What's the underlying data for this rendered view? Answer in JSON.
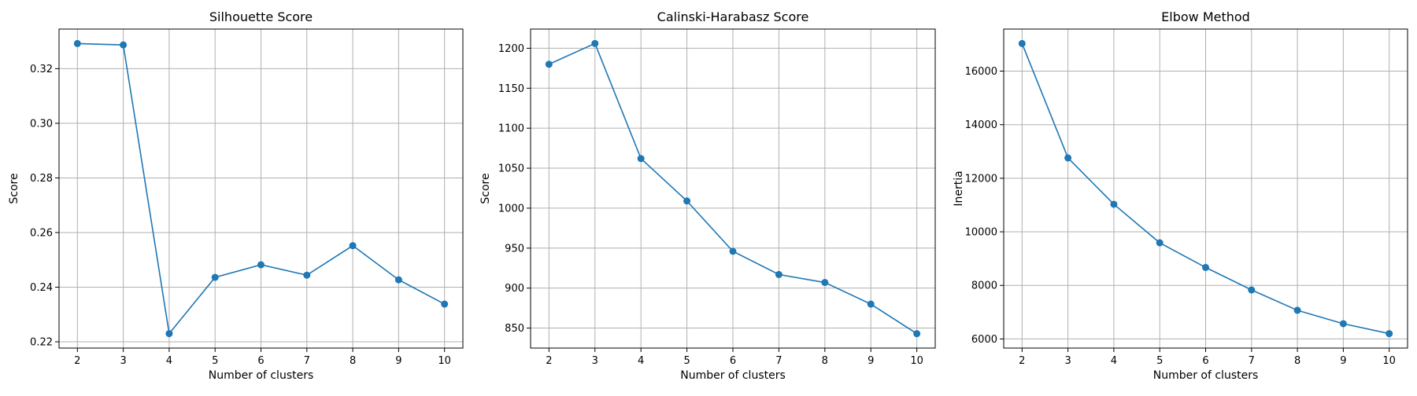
{
  "colors": {
    "series": "#1f77b4",
    "grid": "#b0b0b0",
    "axes": "#000000"
  },
  "chart_data": [
    {
      "type": "line",
      "title": "Silhouette Score",
      "xlabel": "Number of clusters",
      "ylabel": "Score",
      "x": [
        2,
        3,
        4,
        5,
        6,
        7,
        8,
        9,
        10
      ],
      "y": [
        0.3292,
        0.3287,
        0.223,
        0.2436,
        0.2482,
        0.2444,
        0.2552,
        0.2427,
        0.2338
      ],
      "xticks": [
        "2",
        "3",
        "4",
        "5",
        "6",
        "7",
        "8",
        "9",
        "10"
      ],
      "yticks": [
        {
          "value": 0.22,
          "label": "0.22"
        },
        {
          "value": 0.24,
          "label": "0.24"
        },
        {
          "value": 0.26,
          "label": "0.26"
        },
        {
          "value": 0.28,
          "label": "0.28"
        },
        {
          "value": 0.3,
          "label": "0.30"
        },
        {
          "value": 0.32,
          "label": "0.32"
        }
      ],
      "xlim": [
        1.6,
        10.4
      ],
      "ylim": [
        0.2177,
        0.3345
      ],
      "grid": true,
      "marker": "circle"
    },
    {
      "type": "line",
      "title": "Calinski-Harabasz Score",
      "xlabel": "Number of clusters",
      "ylabel": "Score",
      "x": [
        2,
        3,
        4,
        5,
        6,
        7,
        8,
        9,
        10
      ],
      "y": [
        1180,
        1206,
        1062,
        1009,
        946,
        917,
        907,
        880,
        843
      ],
      "xticks": [
        "2",
        "3",
        "4",
        "5",
        "6",
        "7",
        "8",
        "9",
        "10"
      ],
      "yticks": [
        {
          "value": 850,
          "label": "850"
        },
        {
          "value": 900,
          "label": "900"
        },
        {
          "value": 950,
          "label": "950"
        },
        {
          "value": 1000,
          "label": "1000"
        },
        {
          "value": 1050,
          "label": "1050"
        },
        {
          "value": 1100,
          "label": "1100"
        },
        {
          "value": 1150,
          "label": "1150"
        },
        {
          "value": 1200,
          "label": "1200"
        }
      ],
      "xlim": [
        1.6,
        10.4
      ],
      "ylim": [
        825,
        1224
      ],
      "grid": true,
      "marker": "circle"
    },
    {
      "type": "line",
      "title": "Elbow Method",
      "xlabel": "Number of clusters",
      "ylabel": "Inertia",
      "x": [
        2,
        3,
        4,
        5,
        6,
        7,
        8,
        9,
        10
      ],
      "y": [
        17030,
        12760,
        11030,
        9590,
        8670,
        7830,
        7070,
        6570,
        6200
      ],
      "xticks": [
        "2",
        "3",
        "4",
        "5",
        "6",
        "7",
        "8",
        "9",
        "10"
      ],
      "yticks": [
        {
          "value": 6000,
          "label": "6000"
        },
        {
          "value": 8000,
          "label": "8000"
        },
        {
          "value": 10000,
          "label": "10000"
        },
        {
          "value": 12000,
          "label": "12000"
        },
        {
          "value": 14000,
          "label": "14000"
        },
        {
          "value": 16000,
          "label": "16000"
        }
      ],
      "xlim": [
        1.6,
        10.4
      ],
      "ylim": [
        5660,
        17570
      ],
      "grid": true,
      "marker": "circle"
    }
  ]
}
